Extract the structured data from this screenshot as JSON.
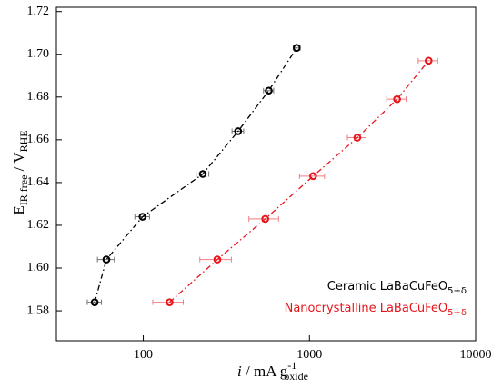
{
  "chart_data": {
    "type": "scatter",
    "xlabel": {
      "italic": "i",
      "main": " / mA g",
      "sup": "-1",
      "sub": "oxide"
    },
    "ylabel": {
      "main": "E",
      "sub": "IR free",
      "sep": " / V",
      "sub2": "RHE"
    },
    "xlog": true,
    "xlim": [
      30,
      10000
    ],
    "xticks": [
      100,
      1000,
      10000
    ],
    "ylim": [
      1.566,
      1.722
    ],
    "yticks": [
      1.58,
      {
        "value": 1.6,
        "label": "1.60"
      },
      1.62,
      1.64,
      1.66,
      1.68,
      {
        "value": 1.7,
        "label": "1.70"
      },
      1.72
    ],
    "legend": "lower right",
    "series": [
      {
        "name": "Ceramic LaBaCuFeO",
        "name_sub": "5+δ",
        "color": "#000000",
        "x": [
          51,
          60,
          99,
          228,
          372,
          569,
          839
        ],
        "values": [
          1.584,
          1.604,
          1.624,
          1.644,
          1.664,
          1.683,
          1.703
        ],
        "xerr": [
          5,
          7,
          10,
          20,
          30,
          40,
          40
        ]
      },
      {
        "name": "Nanocrystalline LaBaCuFeO",
        "name_sub": "5+δ",
        "color": "#e8141a",
        "x": [
          144,
          279,
          542,
          1052,
          1942,
          3367,
          5212
        ],
        "values": [
          1.584,
          1.604,
          1.623,
          1.643,
          1.661,
          1.679,
          1.697
        ],
        "xerr": [
          30,
          60,
          110,
          180,
          250,
          450,
          700
        ]
      }
    ]
  }
}
